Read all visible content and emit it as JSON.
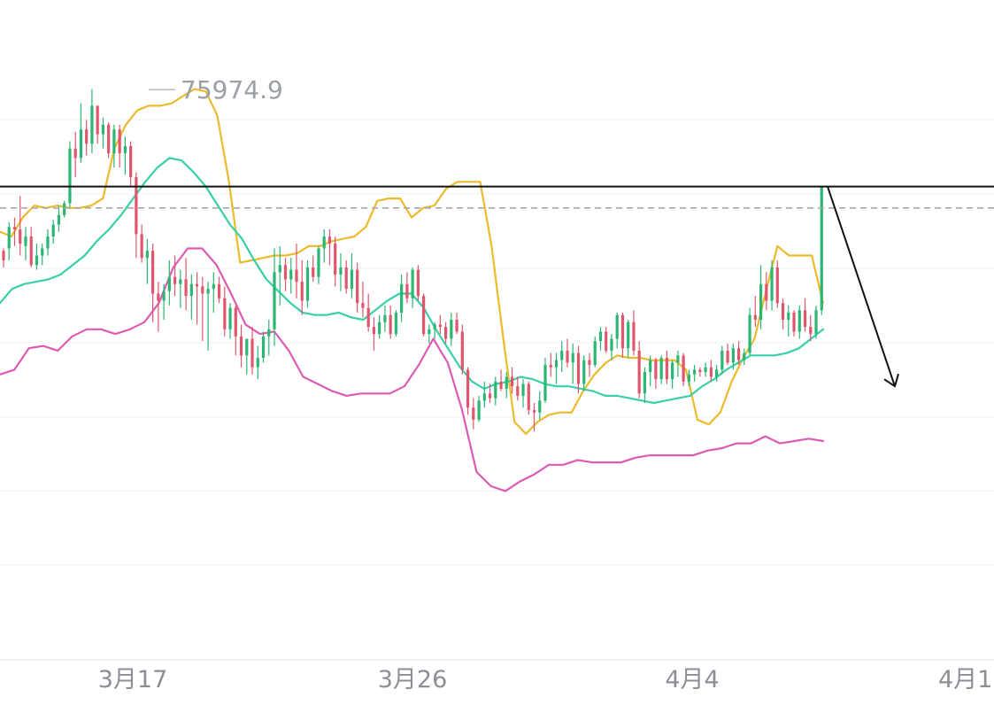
{
  "chart_data": {
    "type": "candlestick",
    "title": "",
    "xlabel": "",
    "ylabel": "",
    "x_tick_labels": [
      "3月17",
      "3月26",
      "4月4",
      "4月1"
    ],
    "high_marker": {
      "label": "75974.9",
      "value": 75974.9
    },
    "resistance_level": 71900,
    "reference_level": 71000,
    "projection": {
      "direction": "down",
      "from_value": 71900,
      "to_value": 63500
    },
    "ylim": [
      52000,
      79000
    ],
    "grid": true,
    "legend": "none",
    "colors": {
      "up": "#2bb673",
      "down": "#e0566c",
      "bb_upper": "#ecbb2c",
      "bb_middle": "#38cfa9",
      "bb_lower": "#de5bb4",
      "horizontal_line": "#111111",
      "dashed_line": "#a8a8a8",
      "arrow": "#111111",
      "grid": "#eef0f3"
    },
    "series": [
      {
        "name": "",
        "role": "bollinger_upper",
        "values": [
          70000,
          69800,
          70600,
          71100,
          71000,
          71100,
          71000,
          71000,
          71100,
          71400,
          73500,
          74500,
          75100,
          75300,
          75300,
          75400,
          75700,
          76000,
          75900,
          74900,
          72200,
          68700,
          68800,
          68900,
          69000,
          69000,
          69100,
          69400,
          69400,
          69600,
          69700,
          69800,
          70200,
          71300,
          71400,
          71400,
          70600,
          71000,
          71100,
          71800,
          72100,
          72100,
          72100,
          69400,
          65600,
          62000,
          61500,
          62000,
          62300,
          62400,
          62400,
          63300,
          64000,
          64500,
          64800,
          64700,
          64700,
          64600,
          64600,
          64600,
          64200,
          62100,
          61900,
          62400,
          63700,
          64700,
          65500,
          67500,
          69400,
          69000,
          69000,
          69000,
          67000
        ]
      },
      {
        "name": "",
        "role": "bollinger_middle",
        "values": [
          67000,
          67600,
          67800,
          67900,
          68000,
          68200,
          68600,
          69000,
          69600,
          70100,
          70700,
          71400,
          72100,
          72700,
          73100,
          73000,
          72500,
          71900,
          71100,
          70300,
          69700,
          68800,
          68000,
          67500,
          67000,
          66600,
          66500,
          66500,
          66600,
          66400,
          66300,
          66700,
          67100,
          67400,
          67400,
          66800,
          65900,
          65100,
          64300,
          63700,
          63400,
          63600,
          63700,
          63900,
          63800,
          63600,
          63500,
          63500,
          63400,
          63300,
          63100,
          63100,
          63000,
          62900,
          62800,
          62900,
          63000,
          63100,
          63500,
          63800,
          64200,
          64500,
          64800,
          64800,
          64800,
          64900,
          65100,
          65500,
          65900
        ]
      },
      {
        "name": "",
        "role": "bollinger_lower",
        "values": [
          64000,
          64200,
          65100,
          65200,
          65000,
          65600,
          65900,
          65900,
          65700,
          65900,
          66200,
          67000,
          68500,
          69300,
          69300,
          68600,
          67400,
          66100,
          65700,
          65800,
          65000,
          63900,
          63600,
          63300,
          63100,
          63200,
          63200,
          63200,
          63500,
          64400,
          65500,
          64500,
          62500,
          59900,
          59300,
          59100,
          59500,
          59800,
          60200,
          60200,
          60400,
          60300,
          60300,
          60300,
          60500,
          60600,
          60600,
          60600,
          60600,
          60800,
          60900,
          61100,
          61100,
          61400,
          61100,
          61200,
          61300,
          61200
        ]
      },
      {
        "name": "",
        "role": "candles",
        "ohlc": [
          [
            69200,
            69300,
            68500,
            68800
          ],
          [
            69300,
            70400,
            68800,
            70200
          ],
          [
            70200,
            70600,
            69400,
            70100
          ],
          [
            70100,
            71500,
            69000,
            69500
          ],
          [
            69400,
            70200,
            68800,
            69800
          ],
          [
            69800,
            70200,
            68500,
            68600
          ],
          [
            68600,
            69500,
            68400,
            69000
          ],
          [
            69000,
            69500,
            68600,
            69300
          ],
          [
            69300,
            70100,
            69000,
            69800
          ],
          [
            69800,
            70500,
            69500,
            70300
          ],
          [
            70300,
            71100,
            70000,
            70700
          ],
          [
            70700,
            71300,
            70600,
            71200
          ],
          [
            71200,
            73800,
            71000,
            73500
          ],
          [
            73500,
            74200,
            72300,
            73100
          ],
          [
            73100,
            75400,
            72900,
            74300
          ],
          [
            74300,
            74700,
            73200,
            73700
          ],
          [
            73700,
            76000,
            73300,
            75300
          ],
          [
            75300,
            75300,
            73700,
            74100
          ],
          [
            74100,
            74800,
            73500,
            74500
          ],
          [
            74500,
            74600,
            73100,
            73300
          ],
          [
            73300,
            74500,
            72700,
            74300
          ],
          [
            74300,
            74500,
            72700,
            73300
          ],
          [
            73300,
            74000,
            72400,
            73600
          ],
          [
            73600,
            73800,
            71900,
            72300
          ],
          [
            72300,
            72500,
            68900,
            69900
          ],
          [
            69900,
            70300,
            68700,
            68900
          ],
          [
            68900,
            69700,
            67800,
            69200
          ],
          [
            69200,
            69500,
            66200,
            67400
          ],
          [
            67400,
            67900,
            65800,
            67100
          ],
          [
            67100,
            67800,
            66300,
            67500
          ],
          [
            67500,
            68800,
            66900,
            68100
          ],
          [
            68100,
            69000,
            67300,
            67800
          ],
          [
            67800,
            68400,
            66800,
            68000
          ],
          [
            68000,
            68900,
            66700,
            67300
          ],
          [
            67300,
            68200,
            66300,
            67800
          ],
          [
            67800,
            68300,
            66100,
            67700
          ],
          [
            67700,
            68100,
            65400,
            67400
          ],
          [
            67400,
            67900,
            65000,
            67600
          ],
          [
            67600,
            68300,
            66600,
            67800
          ],
          [
            67800,
            68100,
            67000,
            67200
          ],
          [
            67200,
            67700,
            65600,
            65900
          ],
          [
            65900,
            67000,
            65500,
            66800
          ],
          [
            66800,
            66900,
            64800,
            65600
          ],
          [
            65600,
            66100,
            64300,
            64800
          ],
          [
            64800,
            65500,
            64000,
            65500
          ],
          [
            65500,
            66000,
            64000,
            64300
          ],
          [
            64300,
            65200,
            63800,
            64700
          ],
          [
            64700,
            65800,
            64500,
            65600
          ],
          [
            65600,
            66300,
            64800,
            65900
          ],
          [
            65900,
            69300,
            65200,
            68300
          ],
          [
            68300,
            69400,
            66900,
            68600
          ],
          [
            68600,
            68900,
            67500,
            68000
          ],
          [
            68000,
            68900,
            67400,
            68400
          ],
          [
            68400,
            69500,
            67200,
            67900
          ],
          [
            67900,
            68800,
            66500,
            67100
          ],
          [
            67100,
            68800,
            66800,
            68500
          ],
          [
            68500,
            69000,
            67900,
            68100
          ],
          [
            68100,
            69400,
            67800,
            69300
          ],
          [
            69300,
            70100,
            68700,
            69800
          ],
          [
            69800,
            70100,
            68600,
            69500
          ],
          [
            69500,
            69800,
            67700,
            68200
          ],
          [
            68200,
            69100,
            67500,
            68500
          ],
          [
            68500,
            68800,
            67400,
            67600
          ],
          [
            67600,
            69100,
            67200,
            68400
          ],
          [
            68400,
            68700,
            66600,
            67000
          ],
          [
            67000,
            67900,
            66400,
            66800
          ],
          [
            66800,
            67400,
            65800,
            66000
          ],
          [
            66000,
            66400,
            65000,
            65700
          ],
          [
            65700,
            66500,
            65500,
            66200
          ],
          [
            66200,
            66900,
            65800,
            66500
          ],
          [
            66500,
            66900,
            65500,
            65700
          ],
          [
            65700,
            66700,
            65600,
            66600
          ],
          [
            66600,
            68200,
            66200,
            67800
          ],
          [
            67800,
            68300,
            67000,
            67200
          ],
          [
            67200,
            68500,
            66800,
            68400
          ],
          [
            68400,
            68600,
            67100,
            67300
          ],
          [
            67300,
            67400,
            65600,
            65700
          ],
          [
            65700,
            66100,
            65300,
            65900
          ],
          [
            65900,
            66200,
            65500,
            66100
          ],
          [
            66100,
            66500,
            65700,
            66000
          ],
          [
            66000,
            66200,
            65300,
            65500
          ],
          [
            65500,
            66600,
            65200,
            66300
          ],
          [
            66300,
            66600,
            65700,
            65800
          ],
          [
            65800,
            66100,
            64000,
            64200
          ],
          [
            64200,
            64300,
            62300,
            62600
          ],
          [
            62600,
            63000,
            61700,
            62100
          ],
          [
            62100,
            63100,
            62000,
            62900
          ],
          [
            62900,
            63700,
            62600,
            63200
          ],
          [
            63200,
            63600,
            62800,
            63000
          ],
          [
            63000,
            63900,
            62700,
            63700
          ],
          [
            63700,
            64200,
            63300,
            63400
          ],
          [
            63400,
            64100,
            63000,
            63900
          ],
          [
            63900,
            64300,
            63200,
            63500
          ],
          [
            63500,
            63900,
            62900,
            63100
          ],
          [
            63100,
            63800,
            62600,
            63600
          ],
          [
            63600,
            63700,
            62300,
            62500
          ],
          [
            62500,
            62800,
            61600,
            62400
          ],
          [
            62400,
            63300,
            62100,
            62900
          ],
          [
            62900,
            64700,
            62800,
            64400
          ],
          [
            64400,
            64900,
            63900,
            64300
          ],
          [
            64300,
            64900,
            63600,
            64600
          ],
          [
            64600,
            65400,
            64100,
            65000
          ],
          [
            65000,
            65500,
            64300,
            64500
          ],
          [
            64500,
            65300,
            63600,
            64900
          ],
          [
            64900,
            65200,
            63200,
            63600
          ],
          [
            63600,
            64800,
            63300,
            64600
          ],
          [
            64600,
            64900,
            63900,
            64400
          ],
          [
            64400,
            65600,
            64300,
            65400
          ],
          [
            65400,
            66000,
            65000,
            65800
          ],
          [
            65800,
            66000,
            64900,
            65000
          ],
          [
            65000,
            65700,
            64600,
            65500
          ],
          [
            65500,
            66600,
            65100,
            66500
          ],
          [
            66500,
            66600,
            64700,
            65100
          ],
          [
            65100,
            66300,
            64700,
            66200
          ],
          [
            66200,
            66700,
            64800,
            65000
          ],
          [
            65000,
            65400,
            63000,
            63200
          ],
          [
            63200,
            64300,
            62800,
            64100
          ],
          [
            64100,
            64800,
            63500,
            64600
          ],
          [
            64600,
            64700,
            63400,
            63800
          ],
          [
            63800,
            64800,
            63600,
            64700
          ],
          [
            64700,
            65000,
            63600,
            63800
          ],
          [
            63800,
            64600,
            63400,
            64500
          ],
          [
            64500,
            65000,
            63900,
            64800
          ],
          [
            64800,
            64900,
            63500,
            63700
          ],
          [
            63700,
            64200,
            63500,
            64000
          ],
          [
            64000,
            64400,
            63700,
            64200
          ],
          [
            64200,
            64300,
            63900,
            64100
          ],
          [
            64100,
            64500,
            63900,
            64300
          ],
          [
            64300,
            64600,
            63700,
            63900
          ],
          [
            63900,
            64400,
            63700,
            64200
          ],
          [
            64200,
            65200,
            64000,
            65000
          ],
          [
            65000,
            65300,
            64400,
            64500
          ],
          [
            64500,
            65300,
            64200,
            65100
          ],
          [
            65100,
            65400,
            64400,
            64600
          ],
          [
            64600,
            65100,
            64400,
            64900
          ],
          [
            64900,
            66800,
            64800,
            66500
          ],
          [
            66500,
            67300,
            66000,
            66300
          ],
          [
            66300,
            68600,
            65900,
            67800
          ],
          [
            67800,
            68300,
            66700,
            67100
          ],
          [
            67100,
            68800,
            66700,
            68500
          ],
          [
            68500,
            68800,
            66800,
            67000
          ],
          [
            67000,
            67200,
            65900,
            66300
          ],
          [
            66300,
            66900,
            65600,
            66600
          ],
          [
            66600,
            66700,
            65600,
            65800
          ],
          [
            65800,
            66900,
            65500,
            66700
          ],
          [
            66700,
            67200,
            65800,
            66000
          ],
          [
            66000,
            66500,
            65400,
            65700
          ],
          [
            65700,
            66900,
            65500,
            66700
          ],
          [
            66700,
            71900,
            66500,
            71900
          ]
        ]
      }
    ]
  }
}
